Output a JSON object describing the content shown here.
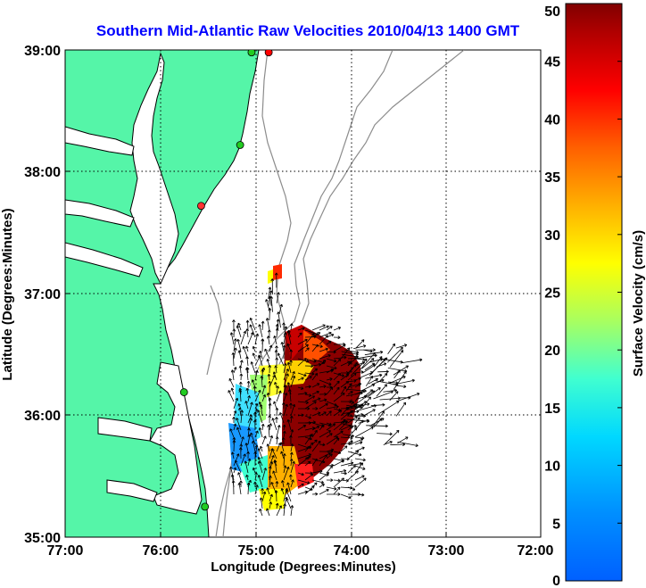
{
  "title": "Southern Mid-Atlantic Raw Velocities 2010/04/13 1400 GMT",
  "x_axis": {
    "label": "Longitude (Degrees:Minutes)",
    "ticks": [
      "77:00",
      "76:00",
      "75:00",
      "74:00",
      "73:00",
      "72:00"
    ],
    "range_deg_west": [
      77,
      72
    ]
  },
  "y_axis": {
    "label": "Latitude (Degrees:Minutes)",
    "ticks": [
      "39:00",
      "38:00",
      "37:00",
      "36:00",
      "35:00"
    ],
    "range_deg_north": [
      35,
      39
    ]
  },
  "colorbar": {
    "label": "Surface Velocity (cm/s)",
    "min": 0,
    "max": 50,
    "ticks": [
      "0",
      "5",
      "10",
      "15",
      "20",
      "25",
      "30",
      "35",
      "40",
      "45",
      "50"
    ]
  },
  "colors": {
    "land": "#55f5a8",
    "coast_line": "#000000",
    "bathymetry": "#8c8c8c",
    "grid": "#000000",
    "title": "#0000ff"
  },
  "stations": [
    {
      "lon": 74.86,
      "lat": 38.98,
      "color": "#ff0000"
    },
    {
      "lon": 75.04,
      "lat": 38.98,
      "color": "#22cc22"
    },
    {
      "lon": 75.16,
      "lat": 38.22,
      "color": "#22cc22"
    },
    {
      "lon": 75.57,
      "lat": 37.72,
      "color": "#ff3333"
    },
    {
      "lon": 75.75,
      "lat": 36.19,
      "color": "#22cc22"
    },
    {
      "lon": 75.53,
      "lat": 35.25,
      "color": "#22cc22"
    }
  ]
}
